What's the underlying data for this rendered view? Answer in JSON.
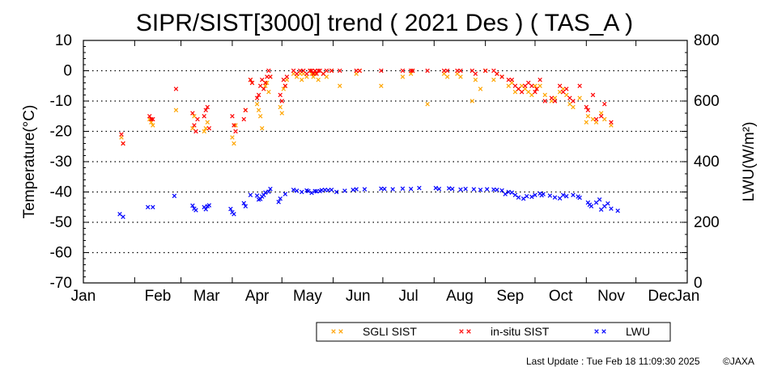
{
  "chart_data": {
    "type": "scatter",
    "title": "SIPR/SIST[3000] trend ( 2021 Des ) ( TAS_A )",
    "ylabel": "Temperature(°C)",
    "y2label": "LWU(W/m²)",
    "ylim": [
      -70,
      10
    ],
    "y2lim": [
      0,
      800
    ],
    "yticks": [
      "10",
      "0",
      "-10",
      "-20",
      "-30",
      "-40",
      "-50",
      "-60",
      "-70"
    ],
    "y2ticks": [
      "800",
      "600",
      "400",
      "200",
      "0"
    ],
    "xticks": [
      "Jan",
      "Feb",
      "Mar",
      "Apr",
      "May",
      "Jun",
      "Jul",
      "Aug",
      "Sep",
      "Oct",
      "Nov",
      "Dec",
      "Jan"
    ],
    "grid": "dotted horizontal every 10 °C",
    "legend_position": "bottom-right",
    "series": [
      {
        "name": "SGLI SIST",
        "color": "#ffa500",
        "axis": "left",
        "points": [
          [
            23,
            -22
          ],
          [
            24,
            -24
          ],
          [
            40,
            -16
          ],
          [
            41,
            -17
          ],
          [
            42,
            -18
          ],
          [
            56,
            -13
          ],
          [
            66,
            -19
          ],
          [
            67,
            -15
          ],
          [
            73,
            -20
          ],
          [
            74,
            -19
          ],
          [
            75,
            -17
          ],
          [
            90,
            -22
          ],
          [
            91,
            -24
          ],
          [
            92,
            -18
          ],
          [
            98,
            -13
          ],
          [
            101,
            -3
          ],
          [
            102,
            -4
          ],
          [
            105,
            -11
          ],
          [
            106,
            -13
          ],
          [
            107,
            -15
          ],
          [
            108,
            -19
          ],
          [
            110,
            -5
          ],
          [
            111,
            -4
          ],
          [
            112,
            -7
          ],
          [
            113,
            -2
          ],
          [
            119,
            -12
          ],
          [
            120,
            -14
          ],
          [
            121,
            -6
          ],
          [
            122,
            -5
          ],
          [
            123,
            -3
          ],
          [
            127,
            -1
          ],
          [
            129,
            -2
          ],
          [
            131,
            -1
          ],
          [
            132,
            -3
          ],
          [
            133,
            -1
          ],
          [
            135,
            -2
          ],
          [
            137,
            0
          ],
          [
            138,
            -1
          ],
          [
            139,
            -2
          ],
          [
            140,
            -1
          ],
          [
            142,
            -3
          ],
          [
            145,
            -1
          ],
          [
            147,
            -2
          ],
          [
            150,
            0
          ],
          [
            155,
            -5
          ],
          [
            165,
            -1
          ],
          [
            167,
            0
          ],
          [
            180,
            -5
          ],
          [
            193,
            -2
          ],
          [
            198,
            -1
          ],
          [
            199,
            0
          ],
          [
            208,
            -11
          ],
          [
            218,
            -1
          ],
          [
            220,
            -2
          ],
          [
            226,
            -1
          ],
          [
            228,
            -2
          ],
          [
            235,
            -10
          ],
          [
            237,
            -3
          ],
          [
            240,
            -6
          ],
          [
            243,
            0
          ],
          [
            248,
            -3
          ],
          [
            250,
            -1
          ],
          [
            253,
            -2
          ],
          [
            257,
            -5
          ],
          [
            259,
            -4
          ],
          [
            261,
            -7
          ],
          [
            263,
            -6
          ],
          [
            265,
            -5
          ],
          [
            267,
            -6
          ],
          [
            269,
            -7
          ],
          [
            271,
            -8
          ],
          [
            273,
            -5
          ],
          [
            274,
            -6
          ],
          [
            276,
            -5
          ],
          [
            279,
            -8
          ],
          [
            283,
            -10
          ],
          [
            285,
            -9
          ],
          [
            288,
            -7
          ],
          [
            290,
            -6
          ],
          [
            292,
            -8
          ],
          [
            294,
            -11
          ],
          [
            296,
            -12
          ],
          [
            300,
            -9
          ],
          [
            304,
            -17
          ],
          [
            305,
            -15
          ],
          [
            308,
            -16
          ],
          [
            310,
            -17
          ],
          [
            313,
            -14
          ],
          [
            315,
            -16
          ],
          [
            319,
            -18
          ]
        ]
      },
      {
        "name": "in-situ SIST",
        "color": "#ff0000",
        "axis": "left",
        "points": [
          [
            23,
            -21
          ],
          [
            24,
            -24
          ],
          [
            40,
            -15
          ],
          [
            41,
            -16
          ],
          [
            42,
            -16
          ],
          [
            56,
            -6
          ],
          [
            66,
            -14
          ],
          [
            67,
            -18
          ],
          [
            68,
            -20
          ],
          [
            69,
            -16
          ],
          [
            73,
            -15
          ],
          [
            74,
            -13
          ],
          [
            75,
            -12
          ],
          [
            76,
            -19
          ],
          [
            90,
            -15
          ],
          [
            91,
            -18
          ],
          [
            92,
            -20
          ],
          [
            97,
            -16
          ],
          [
            98,
            -13
          ],
          [
            101,
            -3
          ],
          [
            102,
            -4
          ],
          [
            105,
            -9
          ],
          [
            106,
            -8
          ],
          [
            107,
            -5
          ],
          [
            108,
            -3
          ],
          [
            109,
            -6
          ],
          [
            110,
            -4
          ],
          [
            111,
            -2
          ],
          [
            112,
            0
          ],
          [
            113,
            -2
          ],
          [
            119,
            -8
          ],
          [
            120,
            -10
          ],
          [
            121,
            -3
          ],
          [
            122,
            -5
          ],
          [
            123,
            -2
          ],
          [
            127,
            0
          ],
          [
            129,
            -1
          ],
          [
            131,
            0
          ],
          [
            133,
            0
          ],
          [
            135,
            -1
          ],
          [
            137,
            0
          ],
          [
            138,
            0
          ],
          [
            139,
            -1
          ],
          [
            140,
            0
          ],
          [
            141,
            -1
          ],
          [
            142,
            0
          ],
          [
            143,
            0
          ],
          [
            145,
            -1
          ],
          [
            147,
            0
          ],
          [
            150,
            0
          ],
          [
            155,
            0
          ],
          [
            165,
            0
          ],
          [
            167,
            0
          ],
          [
            180,
            0
          ],
          [
            193,
            0
          ],
          [
            198,
            0
          ],
          [
            199,
            0
          ],
          [
            208,
            0
          ],
          [
            218,
            0
          ],
          [
            220,
            0
          ],
          [
            226,
            0
          ],
          [
            228,
            0
          ],
          [
            235,
            0
          ],
          [
            237,
            -1
          ],
          [
            243,
            0
          ],
          [
            248,
            0
          ],
          [
            250,
            -1
          ],
          [
            253,
            -2
          ],
          [
            257,
            -3
          ],
          [
            259,
            -3
          ],
          [
            261,
            -5
          ],
          [
            263,
            -6
          ],
          [
            265,
            -7
          ],
          [
            267,
            -5
          ],
          [
            269,
            -4
          ],
          [
            271,
            -5
          ],
          [
            273,
            -7
          ],
          [
            274,
            -6
          ],
          [
            276,
            -3
          ],
          [
            279,
            -10
          ],
          [
            283,
            -9
          ],
          [
            285,
            -10
          ],
          [
            288,
            -5
          ],
          [
            290,
            -7
          ],
          [
            292,
            -6
          ],
          [
            294,
            -9
          ],
          [
            296,
            -10
          ],
          [
            300,
            -5
          ],
          [
            304,
            -12
          ],
          [
            305,
            -13
          ],
          [
            308,
            -8
          ],
          [
            310,
            -16
          ],
          [
            313,
            -15
          ],
          [
            315,
            -11
          ],
          [
            319,
            -17
          ]
        ]
      },
      {
        "name": "LWU",
        "color": "#0000ff",
        "axis": "right",
        "points": [
          [
            22,
            227
          ],
          [
            24,
            218
          ],
          [
            39,
            250
          ],
          [
            42,
            250
          ],
          [
            55,
            287
          ],
          [
            66,
            255
          ],
          [
            67,
            245
          ],
          [
            68,
            240
          ],
          [
            73,
            250
          ],
          [
            74,
            243
          ],
          [
            75,
            253
          ],
          [
            76,
            256
          ],
          [
            89,
            244
          ],
          [
            90,
            233
          ],
          [
            91,
            227
          ],
          [
            97,
            263
          ],
          [
            98,
            253
          ],
          [
            101,
            290
          ],
          [
            105,
            288
          ],
          [
            106,
            275
          ],
          [
            107,
            277
          ],
          [
            108,
            285
          ],
          [
            109,
            290
          ],
          [
            110,
            298
          ],
          [
            112,
            301
          ],
          [
            113,
            310
          ],
          [
            118,
            267
          ],
          [
            119,
            278
          ],
          [
            122,
            293
          ],
          [
            127,
            307
          ],
          [
            129,
            304
          ],
          [
            132,
            300
          ],
          [
            135,
            305
          ],
          [
            136,
            303
          ],
          [
            138,
            297
          ],
          [
            140,
            303
          ],
          [
            141,
            302
          ],
          [
            143,
            303
          ],
          [
            144,
            306
          ],
          [
            146,
            307
          ],
          [
            148,
            306
          ],
          [
            150,
            307
          ],
          [
            153,
            300
          ],
          [
            158,
            304
          ],
          [
            163,
            307
          ],
          [
            165,
            309
          ],
          [
            170,
            309
          ],
          [
            180,
            311
          ],
          [
            182,
            310
          ],
          [
            187,
            309
          ],
          [
            193,
            311
          ],
          [
            198,
            310
          ],
          [
            203,
            313
          ],
          [
            213,
            313
          ],
          [
            215,
            310
          ],
          [
            221,
            312
          ],
          [
            223,
            310
          ],
          [
            228,
            308
          ],
          [
            231,
            310
          ],
          [
            236,
            309
          ],
          [
            240,
            307
          ],
          [
            244,
            309
          ],
          [
            248,
            308
          ],
          [
            250,
            307
          ],
          [
            253,
            305
          ],
          [
            255,
            293
          ],
          [
            257,
            300
          ],
          [
            259,
            298
          ],
          [
            261,
            290
          ],
          [
            263,
            282
          ],
          [
            266,
            278
          ],
          [
            268,
            286
          ],
          [
            271,
            284
          ],
          [
            273,
            290
          ],
          [
            276,
            295
          ],
          [
            277,
            289
          ],
          [
            278,
            293
          ],
          [
            282,
            288
          ],
          [
            285,
            282
          ],
          [
            288,
            279
          ],
          [
            290,
            290
          ],
          [
            292,
            286
          ],
          [
            296,
            290
          ],
          [
            299,
            285
          ],
          [
            300,
            281
          ],
          [
            305,
            265
          ],
          [
            306,
            258
          ],
          [
            307,
            253
          ],
          [
            310,
            265
          ],
          [
            312,
            275
          ],
          [
            313,
            242
          ],
          [
            315,
            253
          ],
          [
            317,
            262
          ],
          [
            319,
            245
          ],
          [
            323,
            238
          ]
        ]
      }
    ]
  },
  "footer": {
    "last_update": "Last Update : Tue Feb 18 11:09:30 2025",
    "copyright": "©JAXA"
  }
}
